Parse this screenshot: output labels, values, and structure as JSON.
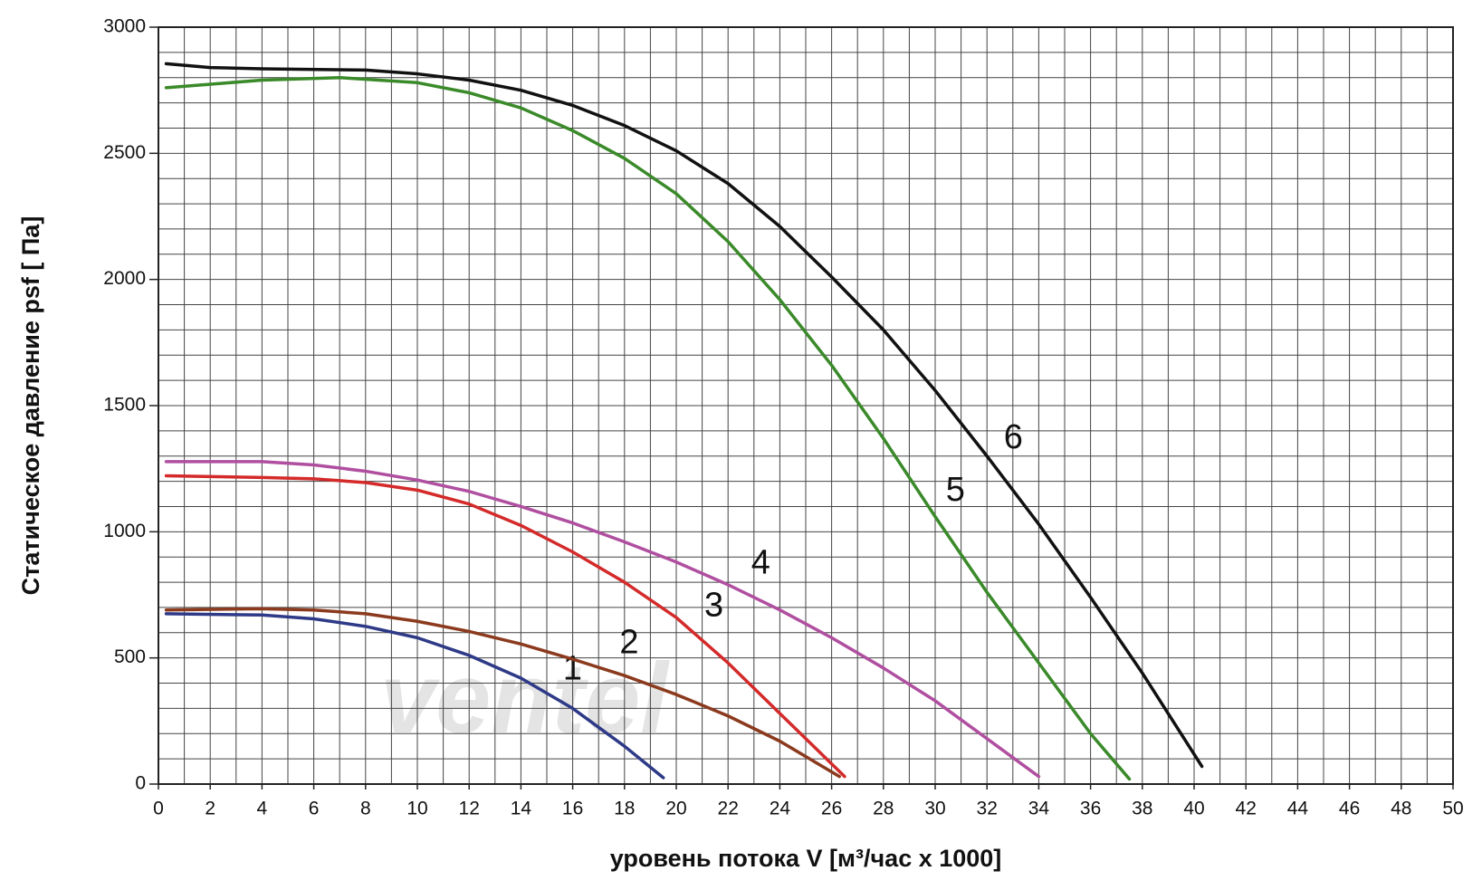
{
  "chart_data": {
    "type": "line",
    "xlabel": "уровень потока  V [м³/час x 1000]",
    "ylabel": "Статическое давление  psf [ Па]",
    "watermark": "ventel",
    "xlim": [
      0,
      50
    ],
    "xticks": [
      0,
      2,
      4,
      6,
      8,
      10,
      12,
      14,
      16,
      18,
      20,
      22,
      24,
      26,
      28,
      30,
      32,
      34,
      36,
      38,
      40,
      42,
      44,
      46,
      48,
      50
    ],
    "ylim": [
      0,
      3000
    ],
    "yticks": [
      0,
      500,
      1000,
      1500,
      2000,
      2500,
      3000
    ],
    "grid": true,
    "minor_grid_step": [
      1,
      100
    ],
    "series": [
      {
        "name": "1",
        "color": "#2e3a87",
        "x": [
          0.3,
          4,
          6,
          8,
          10,
          12,
          14,
          16,
          18,
          19.5
        ],
        "values": [
          675,
          670,
          655,
          625,
          580,
          510,
          420,
          300,
          150,
          25
        ]
      },
      {
        "name": "2",
        "color": "#8b3a1e",
        "x": [
          0.3,
          4,
          6,
          8,
          10,
          12,
          14,
          16,
          18,
          20,
          22,
          24,
          26.3
        ],
        "values": [
          690,
          695,
          690,
          675,
          645,
          605,
          555,
          495,
          430,
          355,
          270,
          170,
          30
        ]
      },
      {
        "name": "3",
        "color": "#d42a2a",
        "x": [
          0.3,
          4,
          6,
          8,
          10,
          12,
          14,
          16,
          18,
          20,
          22,
          24,
          26.5
        ],
        "values": [
          1222,
          1215,
          1210,
          1195,
          1165,
          1110,
          1025,
          920,
          800,
          660,
          480,
          280,
          30
        ]
      },
      {
        "name": "4",
        "color": "#b04fa0",
        "x": [
          0.3,
          4,
          6,
          8,
          10,
          12,
          14,
          16,
          18,
          20,
          22,
          24,
          26,
          28,
          30,
          32,
          34
        ],
        "values": [
          1278,
          1278,
          1265,
          1240,
          1205,
          1160,
          1100,
          1035,
          960,
          880,
          790,
          690,
          580,
          460,
          330,
          180,
          30
        ]
      },
      {
        "name": "5",
        "color": "#3a8a2a",
        "x": [
          0.3,
          4,
          7,
          10,
          12,
          14,
          16,
          18,
          20,
          22,
          24,
          26,
          28,
          30,
          32,
          34,
          36,
          37.5
        ],
        "values": [
          2760,
          2790,
          2800,
          2780,
          2740,
          2680,
          2590,
          2480,
          2340,
          2150,
          1920,
          1660,
          1370,
          1060,
          760,
          480,
          200,
          20
        ]
      },
      {
        "name": "6",
        "color": "#111111",
        "x": [
          0.3,
          2,
          4,
          8,
          10,
          12,
          14,
          16,
          18,
          20,
          22,
          24,
          26,
          28,
          30,
          32,
          34,
          36,
          38,
          40.3
        ],
        "values": [
          2855,
          2840,
          2835,
          2830,
          2815,
          2790,
          2750,
          2690,
          2610,
          2510,
          2380,
          2210,
          2010,
          1800,
          1560,
          1300,
          1030,
          740,
          440,
          70
        ]
      }
    ]
  }
}
